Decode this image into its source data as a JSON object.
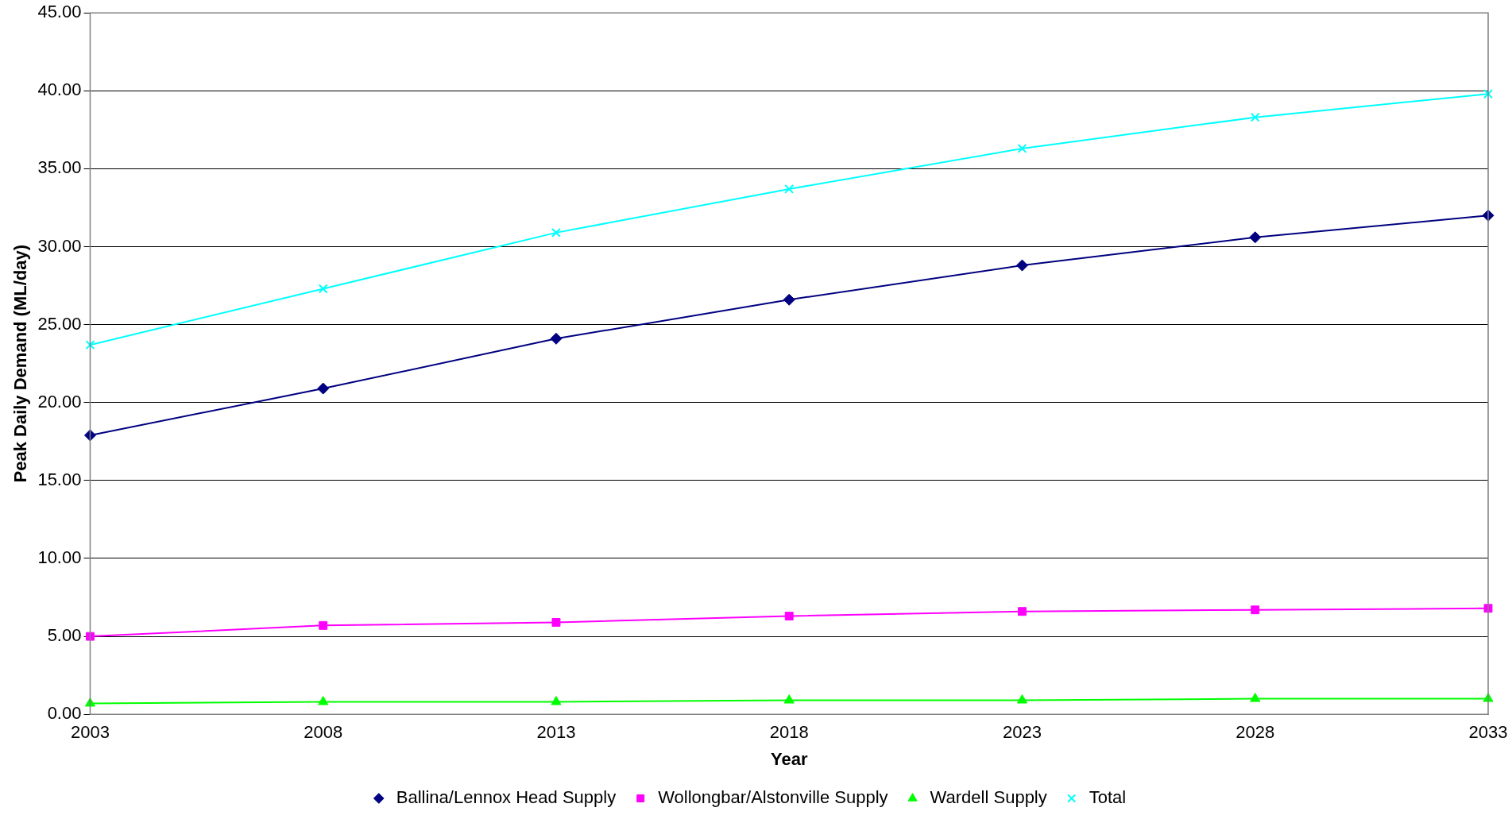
{
  "chart_data": {
    "type": "line",
    "xlabel": "Year",
    "ylabel": "Peak Daily Demand (ML/day)",
    "categories": [
      "2003",
      "2008",
      "2013",
      "2018",
      "2023",
      "2028",
      "2033"
    ],
    "ylim": [
      0,
      45
    ],
    "yticks": [
      {
        "value": 0,
        "label": "0.00"
      },
      {
        "value": 5,
        "label": "5.00"
      },
      {
        "value": 10,
        "label": "10.00"
      },
      {
        "value": 15,
        "label": "15.00"
      },
      {
        "value": 20,
        "label": "20.00"
      },
      {
        "value": 25,
        "label": "25.00"
      },
      {
        "value": 30,
        "label": "30.00"
      },
      {
        "value": 35,
        "label": "35.00"
      },
      {
        "value": 40,
        "label": "40.00"
      },
      {
        "value": 45,
        "label": "45.00"
      }
    ],
    "grid": "y",
    "legend": "bottom",
    "line_style": "solid",
    "series": [
      {
        "name": "Ballina/Lennox Head Supply",
        "color": "#000080",
        "marker": "diamond",
        "values": [
          17.9,
          20.9,
          24.1,
          26.6,
          28.8,
          30.6,
          32.0
        ]
      },
      {
        "name": "Wollongbar/Alstonville Supply",
        "color": "#ff00ff",
        "marker": "square",
        "values": [
          5.0,
          5.7,
          5.9,
          6.3,
          6.6,
          6.7,
          6.8
        ]
      },
      {
        "name": "Wardell Supply",
        "color": "#00ff00",
        "marker": "triangle",
        "values": [
          0.7,
          0.8,
          0.8,
          0.9,
          0.9,
          1.0,
          1.0
        ]
      },
      {
        "name": "Total",
        "color": "#00ffff",
        "marker": "cross",
        "values": [
          23.7,
          27.3,
          30.9,
          33.7,
          36.3,
          38.3,
          39.8
        ]
      }
    ]
  }
}
